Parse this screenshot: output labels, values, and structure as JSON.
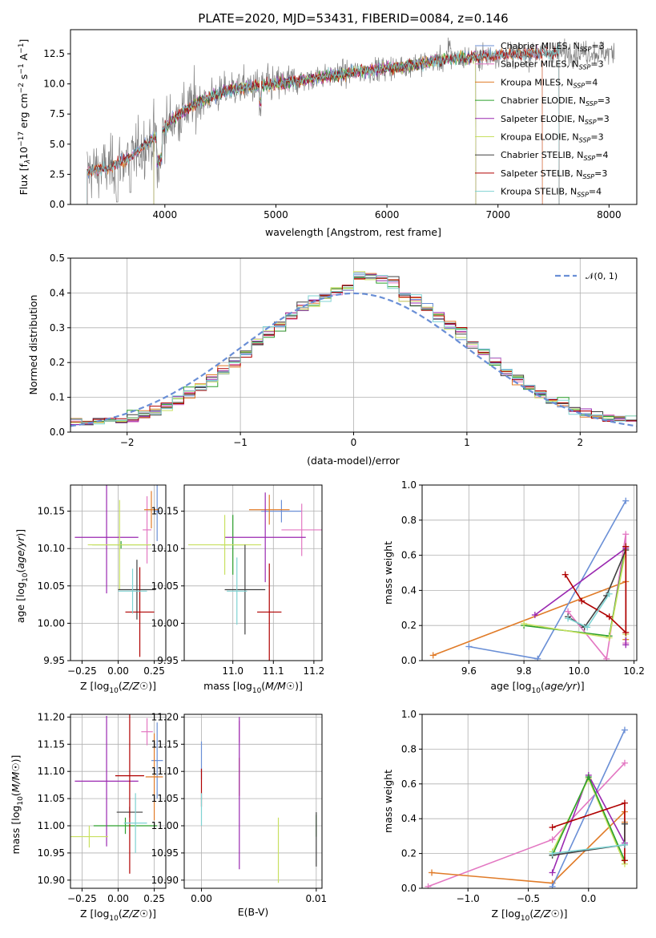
{
  "colors": {
    "chabrier_miles": "#6a8fd6",
    "salpeter_miles": "#e377c2",
    "kroupa_miles": "#e07b28",
    "chabrier_elodie": "#2ca02c",
    "salpeter_elodie": "#9a28b0",
    "kroupa_elodie": "#c8e060",
    "chabrier_stelib": "#404040",
    "salpeter_stelib": "#b00000",
    "kroupa_stelib": "#7fd3d3",
    "data_spectrum": "#808080",
    "normal_curve": "#6a8fd6"
  },
  "chart_data": [
    {
      "id": "spectrum",
      "type": "line",
      "title": "PLATE=2020, MJD=53431, FIBERID=0084, z=0.146",
      "xlabel": "wavelength [Angstrom, rest frame]",
      "ylabel_parts": [
        "Flux [f",
        "λ",
        "10",
        "−17",
        " erg cm",
        "−2",
        " s",
        "−1",
        " A",
        "−1",
        "]"
      ],
      "xlim": [
        3150,
        8250
      ],
      "ylim": [
        0,
        14.5
      ],
      "xticks": [
        "4000",
        "5000",
        "6000",
        "7000",
        "8000"
      ],
      "yticks": [
        "0.0",
        "2.5",
        "5.0",
        "7.5",
        "10.0",
        "12.5"
      ],
      "legend_position": "top-right",
      "legend": [
        {
          "label": "Chabrier MILES, N",
          "sub": "SSP",
          "tail": "=3",
          "color_key": "chabrier_miles"
        },
        {
          "label": "Salpeter MILES, N",
          "sub": "SSP",
          "tail": "=3",
          "color_key": "salpeter_miles"
        },
        {
          "label": "Kroupa MILES, N",
          "sub": "SSP",
          "tail": "=4",
          "color_key": "kroupa_miles"
        },
        {
          "label": "Chabrier ELODIE, N",
          "sub": "SSP",
          "tail": "=3",
          "color_key": "chabrier_elodie"
        },
        {
          "label": "Salpeter ELODIE, N",
          "sub": "SSP",
          "tail": "=3",
          "color_key": "salpeter_elodie"
        },
        {
          "label": "Kroupa ELODIE, N",
          "sub": "SSP",
          "tail": "=3",
          "color_key": "kroupa_elodie"
        },
        {
          "label": "Chabrier STELIB, N",
          "sub": "SSP",
          "tail": "=4",
          "color_key": "chabrier_stelib"
        },
        {
          "label": "Salpeter STELIB, N",
          "sub": "SSP",
          "tail": "=3",
          "color_key": "salpeter_stelib"
        },
        {
          "label": "Kroupa STELIB, N",
          "sub": "SSP",
          "tail": "=4",
          "color_key": "kroupa_stelib"
        }
      ],
      "continuum_points": [
        [
          3300,
          2.8
        ],
        [
          3500,
          3.0
        ],
        [
          3700,
          4.0
        ],
        [
          3900,
          5.5
        ],
        [
          4100,
          7.3
        ],
        [
          4300,
          8.5
        ],
        [
          4600,
          9.6
        ],
        [
          5000,
          10.0
        ],
        [
          5500,
          10.7
        ],
        [
          6000,
          11.3
        ],
        [
          6500,
          12.0
        ],
        [
          7000,
          12.4
        ],
        [
          7500,
          12.6
        ],
        [
          8050,
          12.6
        ]
      ],
      "model_ranges": {
        "miles": [
          3300,
          7400
        ],
        "elodie": [
          3900,
          6800
        ],
        "stelib": [
          3300,
          7550
        ]
      }
    },
    {
      "id": "residual-histogram",
      "type": "line",
      "xlabel": "(data-model)/error",
      "ylabel": "Normed distribution",
      "xlim": [
        -2.5,
        2.5
      ],
      "ylim": [
        0,
        0.5
      ],
      "xticks": [
        "−2",
        "−1",
        "0",
        "1",
        "2"
      ],
      "yticks": [
        "0.0",
        "0.1",
        "0.2",
        "0.3",
        "0.4",
        "0.5"
      ],
      "legend_position": "top-right",
      "legend": [
        {
          "label": "𝒩(0, 1)",
          "color_key": "normal_curve"
        }
      ],
      "bin_width": 0.1,
      "mean_shift": 0.1,
      "peak": 0.43
    },
    {
      "id": "age-vs-z",
      "type": "scatter",
      "xlabel": "Z [log10(Z/Z☉)]",
      "ylabel": "age  [log10(age/yr)]",
      "xlim": [
        -0.33,
        0.33
      ],
      "ylim": [
        9.95,
        10.185
      ],
      "xticks": [
        "−0.25",
        "0.00",
        "0.25"
      ],
      "yticks": [
        "9.95",
        "10.00",
        "10.05",
        "10.10",
        "10.15"
      ],
      "points": [
        {
          "color_key": "chabrier_miles",
          "x": 0.27,
          "xerr": 0.02,
          "y": 10.15,
          "yerr": 0.04
        },
        {
          "color_key": "salpeter_miles",
          "x": 0.2,
          "xerr": 0.03,
          "y": 10.125,
          "yerr": 0.045
        },
        {
          "color_key": "kroupa_miles",
          "x": 0.23,
          "xerr": 0.05,
          "y": 10.152,
          "yerr": 0.025
        },
        {
          "color_key": "chabrier_elodie",
          "x": 0.02,
          "xerr": 0.2,
          "y": 10.105,
          "yerr": 0.005
        },
        {
          "color_key": "salpeter_elodie",
          "x": -0.08,
          "xerr": 0.22,
          "y": 10.115,
          "yerr": 0.075
        },
        {
          "color_key": "kroupa_elodie",
          "x": 0.01,
          "xerr": 0.22,
          "y": 10.105,
          "yerr": 0.06
        },
        {
          "color_key": "chabrier_stelib",
          "x": 0.13,
          "xerr": 0.13,
          "y": 10.045,
          "yerr": 0.04
        },
        {
          "color_key": "salpeter_stelib",
          "x": 0.15,
          "xerr": 0.1,
          "y": 10.015,
          "yerr": 0.06
        },
        {
          "color_key": "kroupa_stelib",
          "x": 0.1,
          "xerr": 0.1,
          "y": 10.043,
          "yerr": 0.03
        }
      ]
    },
    {
      "id": "age-vs-mass",
      "type": "scatter",
      "xlabel": "mass [log10(M/M☉)]",
      "xlim": [
        10.88,
        11.22
      ],
      "ylim": [
        9.95,
        10.185
      ],
      "xticks": [
        "11.0",
        "11.1",
        "11.2"
      ],
      "yticks": [
        "9.95",
        "10.00",
        "10.05",
        "10.10",
        "10.15"
      ],
      "points": [
        {
          "color_key": "chabrier_miles",
          "x": 11.12,
          "xerr": 0.05,
          "y": 10.15,
          "yerr": 0.015
        },
        {
          "color_key": "salpeter_miles",
          "x": 11.17,
          "xerr": 0.05,
          "y": 10.125,
          "yerr": 0.035
        },
        {
          "color_key": "kroupa_miles",
          "x": 11.09,
          "xerr": 0.05,
          "y": 10.152,
          "yerr": 0.02
        },
        {
          "color_key": "chabrier_elodie",
          "x": 11.0,
          "xerr": 0.03,
          "y": 10.105,
          "yerr": 0.04
        },
        {
          "color_key": "salpeter_elodie",
          "x": 11.08,
          "xerr": 0.1,
          "y": 10.115,
          "yerr": 0.06
        },
        {
          "color_key": "kroupa_elodie",
          "x": 10.98,
          "xerr": 0.09,
          "y": 10.105,
          "yerr": 0.04
        },
        {
          "color_key": "chabrier_stelib",
          "x": 11.03,
          "xerr": 0.05,
          "y": 10.045,
          "yerr": 0.06
        },
        {
          "color_key": "salpeter_stelib",
          "x": 11.09,
          "xerr": 0.03,
          "y": 10.015,
          "yerr": 0.065
        },
        {
          "color_key": "kroupa_stelib",
          "x": 11.01,
          "xerr": 0.025,
          "y": 10.043,
          "yerr": 0.045
        }
      ]
    },
    {
      "id": "mass-weight-vs-age",
      "type": "line",
      "xlabel": "age  [log10(age/yr)]",
      "ylabel": "mass weight",
      "xlim": [
        9.43,
        10.21
      ],
      "ylim": [
        0,
        1
      ],
      "xticks": [
        "9.6",
        "9.8",
        "10.0",
        "10.2"
      ],
      "yticks": [
        "0.0",
        "0.2",
        "0.4",
        "0.6",
        "0.8",
        "1.0"
      ],
      "series": [
        {
          "color_key": "kroupa_miles",
          "x": [
            9.47,
            10.17,
            10.17
          ],
          "y": [
            0.03,
            0.45,
            0.12
          ]
        },
        {
          "color_key": "chabrier_miles",
          "x": [
            9.6,
            9.85,
            10.17
          ],
          "y": [
            0.08,
            0.01,
            0.91
          ]
        },
        {
          "color_key": "salpeter_miles",
          "x": [
            9.96,
            10.1,
            10.17,
            10.17
          ],
          "y": [
            0.28,
            0.01,
            0.72,
            0.1
          ]
        },
        {
          "color_key": "chabrier_elodie",
          "x": [
            9.8,
            10.11,
            10.17
          ],
          "y": [
            0.2,
            0.14,
            0.65
          ]
        },
        {
          "color_key": "salpeter_elodie",
          "x": [
            9.84,
            10.17,
            10.17
          ],
          "y": [
            0.26,
            0.64,
            0.09
          ]
        },
        {
          "color_key": "kroupa_elodie",
          "x": [
            9.8,
            10.11,
            10.17,
            10.17
          ],
          "y": [
            0.21,
            0.13,
            0.63,
            0.15
          ]
        },
        {
          "color_key": "chabrier_stelib",
          "x": [
            9.96,
            10.02,
            10.1,
            10.17
          ],
          "y": [
            0.25,
            0.19,
            0.37,
            0.63
          ]
        },
        {
          "color_key": "salpeter_stelib",
          "x": [
            9.95,
            10.01,
            10.11,
            10.17,
            10.17
          ],
          "y": [
            0.49,
            0.34,
            0.25,
            0.16,
            0.65
          ]
        },
        {
          "color_key": "kroupa_stelib",
          "x": [
            9.96,
            10.03,
            10.11
          ],
          "y": [
            0.24,
            0.19,
            0.38
          ]
        }
      ]
    },
    {
      "id": "mass-vs-z",
      "type": "scatter",
      "xlabel": "Z [log10(Z/Z☉)]",
      "ylabel": "mass [log10(M/M☉)]",
      "xlim": [
        -0.33,
        0.33
      ],
      "ylim": [
        10.885,
        11.205
      ],
      "xticks": [
        "−0.25",
        "0.00",
        "0.25"
      ],
      "yticks": [
        "10.90",
        "10.95",
        "11.00",
        "11.05",
        "11.10",
        "11.15",
        "11.20"
      ],
      "points": [
        {
          "color_key": "chabrier_miles",
          "x": 0.27,
          "xerr": 0.04,
          "y": 11.12,
          "yerr": 0.07
        },
        {
          "color_key": "salpeter_miles",
          "x": 0.2,
          "xerr": 0.04,
          "y": 11.173,
          "yerr": 0.025
        },
        {
          "color_key": "kroupa_miles",
          "x": 0.25,
          "xerr": 0.06,
          "y": 11.09,
          "yerr": 0.08
        },
        {
          "color_key": "chabrier_elodie",
          "x": 0.05,
          "xerr": 0.22,
          "y": 11.0,
          "yerr": 0.015
        },
        {
          "color_key": "salpeter_elodie",
          "x": -0.08,
          "xerr": 0.22,
          "y": 11.082,
          "yerr": 0.12
        },
        {
          "color_key": "kroupa_elodie",
          "x": -0.2,
          "xerr": 0.13,
          "y": 10.98,
          "yerr": 0.02
        },
        {
          "color_key": "chabrier_stelib",
          "x": 0.08,
          "xerr": 0.09,
          "y": 11.025,
          "yerr": 0.01
        },
        {
          "color_key": "salpeter_stelib",
          "x": 0.08,
          "xerr": 0.1,
          "y": 11.092,
          "yerr": 0.18
        },
        {
          "color_key": "kroupa_stelib",
          "x": 0.12,
          "xerr": 0.08,
          "y": 11.005,
          "yerr": 0.055
        }
      ]
    },
    {
      "id": "mass-vs-ebv",
      "type": "scatter",
      "xlabel": "E(B-V)",
      "xlim": [
        -0.0015,
        0.0105
      ],
      "ylim": [
        10.885,
        11.205
      ],
      "xticks": [
        "0.00",
        "0.01"
      ],
      "yticks": [
        "10.90",
        "10.95",
        "11.00",
        "11.05",
        "11.10",
        "11.15",
        "11.20"
      ],
      "points": [
        {
          "color_key": "chabrier_miles",
          "x": 0.0,
          "y": 11.12,
          "yerr": 0.035
        },
        {
          "color_key": "salpeter_miles",
          "x": 0.0033,
          "y": 11.173,
          "yerr": 0.02
        },
        {
          "color_key": "kroupa_miles",
          "x": 0.0033,
          "y": 11.09,
          "yerr": 0.035
        },
        {
          "color_key": "chabrier_elodie",
          "x": 0.01,
          "y": 11.0,
          "yerr": 0.02
        },
        {
          "color_key": "salpeter_elodie",
          "x": 0.0033,
          "y": 11.06,
          "yerr": 0.14
        },
        {
          "color_key": "kroupa_elodie",
          "x": 0.0067,
          "y": 10.955,
          "yerr": 0.06
        },
        {
          "color_key": "chabrier_stelib",
          "x": 0.01,
          "y": 10.975,
          "yerr": 0.05
        },
        {
          "color_key": "salpeter_stelib",
          "x": 0.0,
          "y": 11.07,
          "yerr": 0.035
        },
        {
          "color_key": "kroupa_stelib",
          "x": 0.0,
          "y": 11.03,
          "yerr": 0.03
        }
      ]
    },
    {
      "id": "mass-weight-vs-z",
      "type": "line",
      "xlabel": "Z [log10(Z/Z☉)]",
      "ylabel": "mass weight",
      "xlim": [
        -1.38,
        0.4
      ],
      "ylim": [
        0,
        1
      ],
      "xticks": [
        "−1.0",
        "−0.5",
        "0.0"
      ],
      "yticks": [
        "0.0",
        "0.2",
        "0.4",
        "0.6",
        "0.8",
        "1.0"
      ],
      "series": [
        {
          "color_key": "salpeter_miles",
          "x": [
            -1.33,
            -0.3,
            0.3
          ],
          "y": [
            0.01,
            0.28,
            0.72
          ]
        },
        {
          "color_key": "kroupa_miles",
          "x": [
            -1.3,
            -0.3,
            0.3,
            0.3
          ],
          "y": [
            0.09,
            0.03,
            0.44,
            0.38
          ]
        },
        {
          "color_key": "chabrier_miles",
          "x": [
            -0.3,
            0.3
          ],
          "y": [
            0.01,
            0.91
          ]
        },
        {
          "color_key": "salpeter_elodie",
          "x": [
            -0.3,
            0.0,
            0.3
          ],
          "y": [
            0.09,
            0.65,
            0.26
          ]
        },
        {
          "color_key": "kroupa_elodie",
          "x": [
            -0.3,
            0.0,
            0.3
          ],
          "y": [
            0.21,
            0.63,
            0.14
          ]
        },
        {
          "color_key": "chabrier_elodie",
          "x": [
            -0.3,
            0.0,
            0.3
          ],
          "y": [
            0.19,
            0.64,
            0.16
          ]
        },
        {
          "color_key": "salpeter_stelib",
          "x": [
            -0.3,
            0.3,
            0.3
          ],
          "y": [
            0.35,
            0.49,
            0.16
          ]
        },
        {
          "color_key": "chabrier_stelib",
          "x": [
            -0.3,
            0.3,
            0.3
          ],
          "y": [
            0.19,
            0.25,
            0.37
          ]
        },
        {
          "color_key": "kroupa_stelib",
          "x": [
            -0.3,
            0.3
          ],
          "y": [
            0.2,
            0.25
          ]
        }
      ]
    }
  ]
}
